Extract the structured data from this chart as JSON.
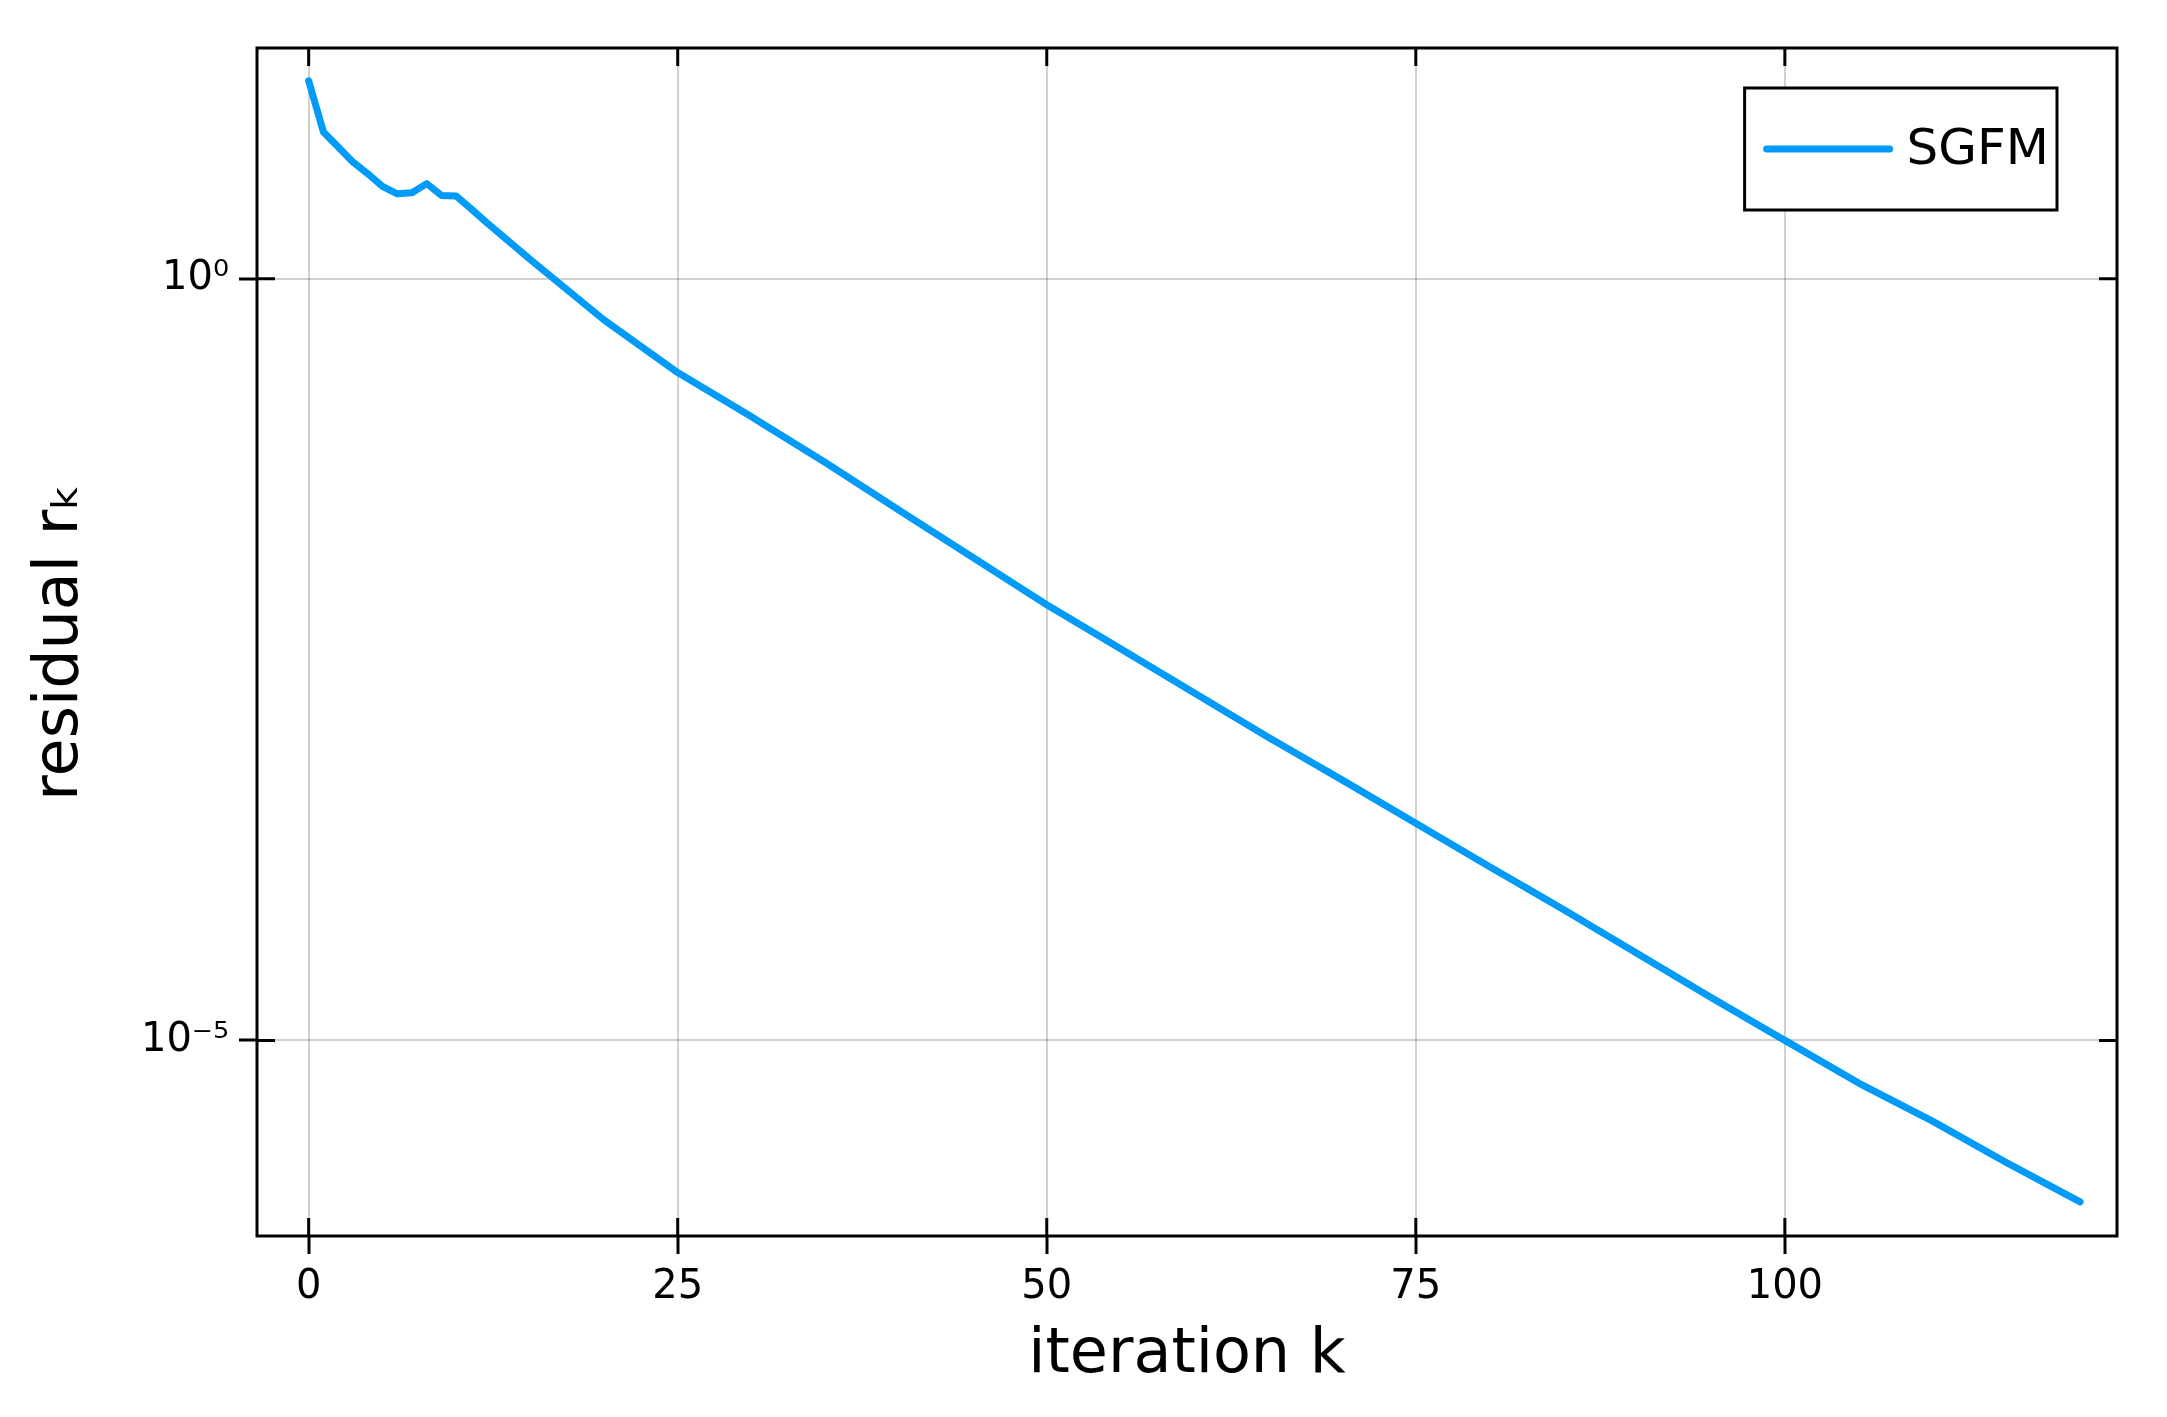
{
  "chart_data": {
    "type": "line",
    "xlabel": "iteration k",
    "ylabel": "residual rₖ",
    "log": "y",
    "grid": true,
    "legend": "top right",
    "marker": "none",
    "line_style": "solid",
    "xlim": [
      -3.5,
      122.5
    ],
    "xticks": [
      0,
      25,
      50,
      75,
      100
    ],
    "ylim": [
      5.2e-07,
      32.7
    ],
    "yticks": [
      {
        "value": 1,
        "label": "10⁰"
      },
      {
        "value": 1e-05,
        "label": "10⁻⁵"
      }
    ],
    "series": [
      {
        "name": "SGFM",
        "color": "#009af9",
        "x": [
          0,
          1,
          2,
          3,
          4,
          5,
          6,
          7,
          8,
          9,
          10,
          11,
          12,
          15,
          20,
          25,
          30,
          35,
          40,
          45,
          50,
          55,
          60,
          65,
          70,
          75,
          80,
          85,
          90,
          95,
          100,
          105,
          110,
          115,
          120
        ],
        "values": [
          19.9,
          9.18,
          7.33,
          5.83,
          4.89,
          4.04,
          3.61,
          3.67,
          4.21,
          3.52,
          3.49,
          2.88,
          2.36,
          1.34,
          0.537,
          0.242,
          0.124,
          0.0621,
          0.0302,
          0.0148,
          0.00724,
          0.00372,
          0.00191,
          0.000977,
          0.000513,
          0.000266,
          0.000138,
          7.24e-05,
          3.72e-05,
          1.91e-05,
          1e-05,
          5.25e-06,
          2.95e-06,
          1.58e-06,
          8.7e-07
        ]
      }
    ]
  }
}
